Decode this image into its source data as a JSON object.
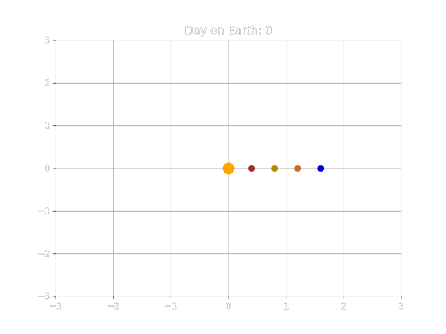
{
  "chart_data": {
    "type": "scatter",
    "title": "Day on Earth: 0",
    "xlim": [
      -3,
      3
    ],
    "ylim": [
      -3,
      3
    ],
    "xticks": [
      -3,
      -2,
      -1,
      0,
      1,
      2,
      3
    ],
    "yticks": [
      -3,
      -2,
      -1,
      0,
      1,
      2,
      3
    ],
    "xtick_labels": [
      "−3",
      "−2",
      "−1",
      "0",
      "1",
      "2",
      "3"
    ],
    "ytick_labels": [
      "−3",
      "−2",
      "−1",
      "0",
      "1",
      "2",
      "3"
    ],
    "grid": true,
    "points": [
      {
        "x": 0.0,
        "y": 0,
        "color": "#FFA500",
        "size": "large"
      },
      {
        "x": 0.4,
        "y": 0,
        "color": "#A52A2A",
        "size": "small"
      },
      {
        "x": 0.8,
        "y": 0,
        "color": "#B8860B",
        "size": "small"
      },
      {
        "x": 1.2,
        "y": 0,
        "color": "#D2691E",
        "size": "small"
      },
      {
        "x": 1.6,
        "y": 0,
        "color": "#0000CD",
        "size": "small"
      }
    ]
  }
}
